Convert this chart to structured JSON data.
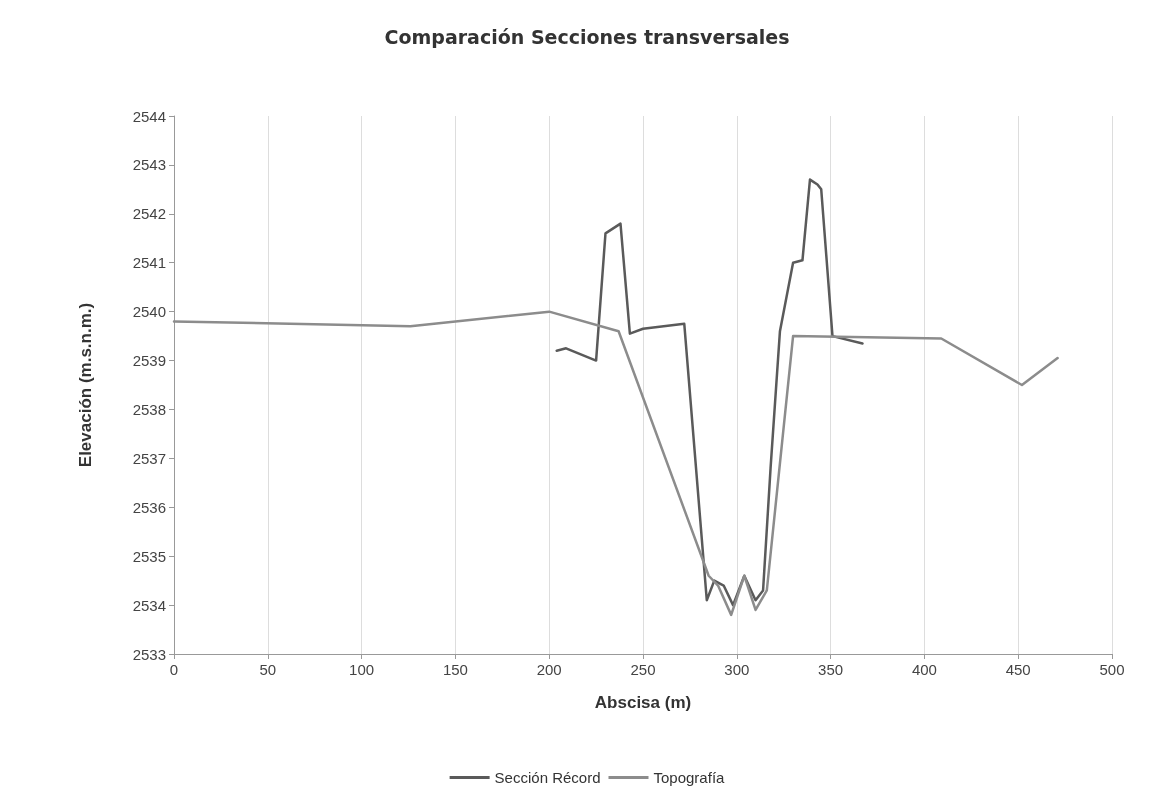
{
  "chart_data": {
    "type": "line",
    "title": "Comparación Secciones transversales",
    "xlabel": "Abscisa (m)",
    "ylabel": "Elevación (m.s.n.m.)",
    "xlim": [
      0,
      500
    ],
    "xticks": [
      0,
      50,
      100,
      150,
      200,
      250,
      300,
      350,
      400,
      450,
      500
    ],
    "ylim": [
      2533,
      2544
    ],
    "yticks": [
      2533,
      2534,
      2535,
      2536,
      2537,
      2538,
      2539,
      2540,
      2541,
      2542,
      2543,
      2544
    ],
    "grid": "x",
    "legend": "bottom",
    "marker": "none",
    "line_style": "solid",
    "series": [
      {
        "name": "Sección Récord",
        "color": "#5a5a5a",
        "x": [
          204,
          209,
          225,
          230,
          238,
          243,
          250,
          272,
          284,
          288,
          293,
          298,
          304,
          310,
          314,
          318,
          323,
          330,
          335,
          339,
          343,
          345,
          351,
          367
        ],
        "values": [
          2539.2,
          2539.25,
          2539.0,
          2541.6,
          2541.8,
          2539.55,
          2539.65,
          2539.75,
          2534.1,
          2534.5,
          2534.4,
          2534.0,
          2534.6,
          2534.1,
          2534.3,
          2536.8,
          2539.6,
          2541.0,
          2541.05,
          2542.7,
          2542.6,
          2542.5,
          2539.5,
          2539.35
        ]
      },
      {
        "name": "Topografía",
        "color": "#8c8c8c",
        "x": [
          0,
          126,
          200,
          237,
          285,
          290,
          297,
          304,
          310,
          316,
          330,
          409,
          452,
          471
        ],
        "values": [
          2539.8,
          2539.7,
          2540.0,
          2539.6,
          2534.6,
          2534.4,
          2533.8,
          2534.6,
          2533.9,
          2534.3,
          2539.5,
          2539.45,
          2538.5,
          2539.05
        ]
      }
    ]
  }
}
